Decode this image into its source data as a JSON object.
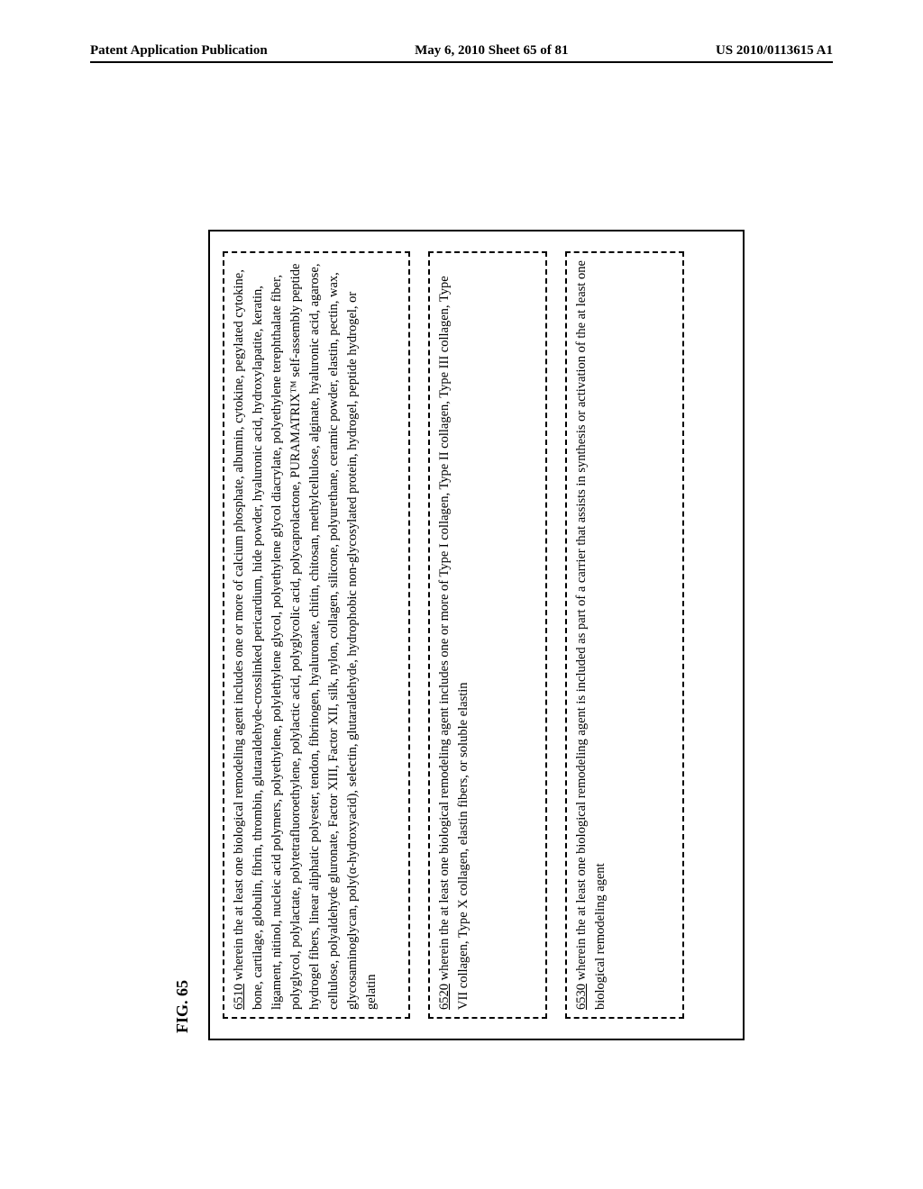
{
  "header": {
    "left": "Patent Application Publication",
    "center": "May 6, 2010  Sheet 65 of 81",
    "right": "US 2010/0113615 A1"
  },
  "figure_label": "FIG. 65",
  "claims": [
    {
      "num": "6510",
      "text": " wherein the at least one biological remodeling agent includes one or more of calcium phosphate, albumin, cytokine, pegylated cytokine, bone, cartilage, globulin, fibrin, thrombin, glutaraldehyde-crosslinked pericardium, hide powder, hyaluronic acid, hydroxylapatite, keratin, ligament, nitinol, nucleic acid polymers, polyethylene, polylethylene glycol, polyethylene glycol diacrylate, polyethylene terephthalate fiber, polyglycol, polylactate, polytetrafluoroethylene, polylactic acid, polyglycolic acid, polycaprolactone, PURAMATRIX™ self-assembly peptide hydrogel fibers, linear aliphatic polyester, tendon, fibrinogen, hyaluronate, chitin, chitosan, methylcellulose, alginate, hyaluronic acid, agarose, cellulose, polyaldehyde gluronate, Factor XIII, Factor XII, silk, nylon, collagen, silicone, polyurethane, ceramic powder, elastin, pectin, wax, glycosaminoglycan, poly(α-hydroxyacid), selectin, glutaraldehyde, hydrophobic non-glycosylated protein, hydrogel, peptide hydrogel, or gelatin"
    },
    {
      "num": "6520",
      "text": " wherein the at least one biological remodeling agent includes one or more of Type I collagen, Type II collagen, Type III collagen, Type VII collagen, Type X collagen, elastin fibers, or soluble elastin"
    },
    {
      "num": "6530",
      "text": " wherein the at least one biological remodeling agent is included as part of a carrier that assists in synthesis or activation of the at least one biological remodeling agent"
    }
  ]
}
